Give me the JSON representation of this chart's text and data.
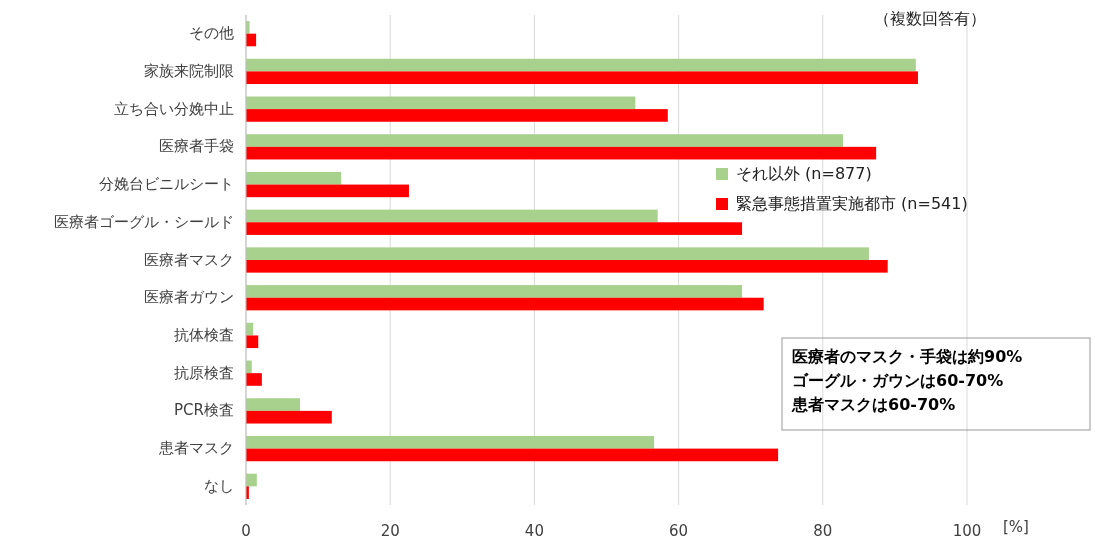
{
  "chart_data": {
    "type": "bar",
    "orientation": "horizontal",
    "categories": [
      "その他",
      "家族来院制限",
      "立ち合い分娩中止",
      "医療者手袋",
      "分娩台ビニルシート",
      "医療者ゴーグル・シールド",
      "医療者マスク",
      "医療者ガウン",
      "抗体検査",
      "抗原検査",
      "PCR検査",
      "患者マスク",
      "なし"
    ],
    "series": [
      {
        "name": "それ以外 (n=877)",
        "color": "#a9d18e",
        "values": [
          0.5,
          92.9,
          54.0,
          82.8,
          13.2,
          57.1,
          86.4,
          68.8,
          1.0,
          0.8,
          7.5,
          56.6,
          1.5
        ]
      },
      {
        "name": "緊急事態措置実施都市 (n=541)",
        "color": "#ff0000",
        "values": [
          1.4,
          93.2,
          58.5,
          87.4,
          22.6,
          68.8,
          89.0,
          71.8,
          1.7,
          2.2,
          11.9,
          73.8,
          0.4
        ]
      }
    ],
    "xlim": [
      0,
      100
    ],
    "xticks": [
      0,
      20,
      40,
      60,
      80,
      100
    ],
    "xlabel": "[%]",
    "grid": "x",
    "legend": "right",
    "annotations": [
      "（複数回答有）",
      "医療者のマスク・手袋は約90%\nゴーグル・ガウンは60-70%\n患者マスクは60-70%"
    ]
  }
}
